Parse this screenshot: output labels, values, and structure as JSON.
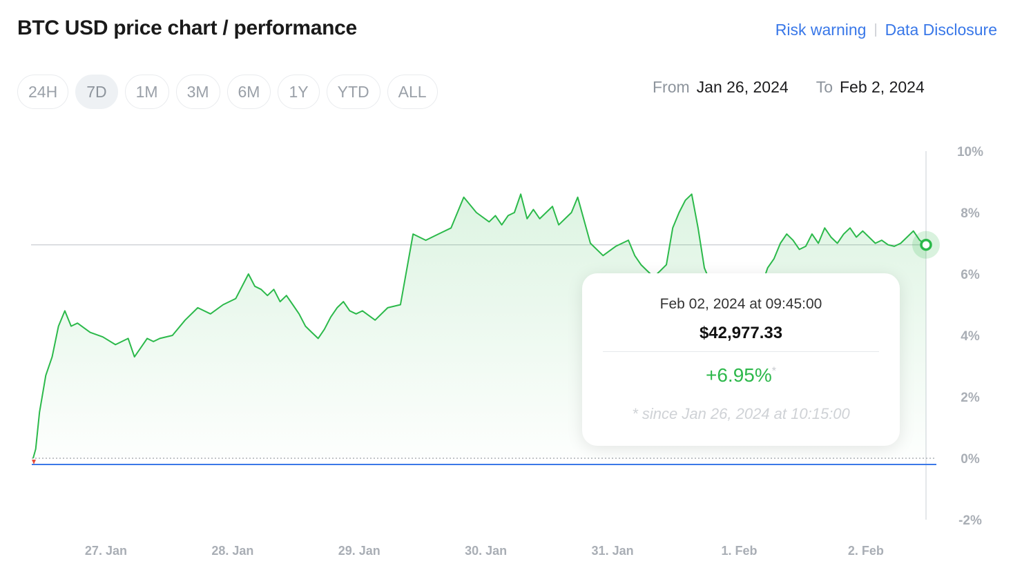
{
  "header": {
    "title": "BTC USD price chart / performance",
    "risk_link": "Risk warning",
    "separator": "|",
    "disclosure_link": "Data Disclosure"
  },
  "periods": [
    "24H",
    "7D",
    "1M",
    "3M",
    "6M",
    "1Y",
    "YTD",
    "ALL"
  ],
  "active_period": "7D",
  "range": {
    "from_label": "From",
    "from_value": "Jan 26, 2024",
    "to_label": "To",
    "to_value": "Feb 2, 2024"
  },
  "tooltip": {
    "date": "Feb 02, 2024 at 09:45:00",
    "price": "$42,977.33",
    "change": "+6.95%",
    "asterisk": "*",
    "since": "* since Jan 26, 2024 at 10:15:00"
  },
  "colors": {
    "line": "#2bb94a",
    "baseline": "#3b78e7",
    "link": "#3877e8",
    "axis_text": "#a9aeb5"
  },
  "chart_data": {
    "type": "area",
    "y_unit": "%",
    "ylim": [
      -2,
      10
    ],
    "y_ticks": [
      -2,
      0,
      2,
      4,
      6,
      8,
      10
    ],
    "y_tick_labels": [
      "-2%",
      "0%",
      "2%",
      "4%",
      "6%",
      "8%",
      "10%"
    ],
    "x_tick_labels": [
      "27. Jan",
      "28. Jan",
      "29. Jan",
      "30. Jan",
      "31. Jan",
      "1. Feb",
      "2. Feb"
    ],
    "x_ticks_days": [
      0.575,
      1.575,
      2.575,
      3.575,
      4.575,
      5.575,
      6.575
    ],
    "grid": false,
    "reference_line_value": 6.95,
    "series": [
      {
        "x_days": [
          0,
          0.02,
          0.05,
          0.1,
          0.15,
          0.2,
          0.25,
          0.3,
          0.35,
          0.45,
          0.55,
          0.65,
          0.75,
          0.8,
          0.85,
          0.9,
          0.95,
          1.0,
          1.1,
          1.2,
          1.3,
          1.4,
          1.5,
          1.6,
          1.7,
          1.75,
          1.8,
          1.85,
          1.9,
          1.95,
          2.0,
          2.05,
          2.1,
          2.15,
          2.2,
          2.25,
          2.3,
          2.35,
          2.4,
          2.45,
          2.5,
          2.55,
          2.6,
          2.7,
          2.8,
          2.9,
          3.0,
          3.1,
          3.15,
          3.2,
          3.3,
          3.4,
          3.5,
          3.6,
          3.65,
          3.7,
          3.75,
          3.8,
          3.85,
          3.9,
          3.95,
          4.0,
          4.05,
          4.1,
          4.15,
          4.2,
          4.25,
          4.3,
          4.4,
          4.5,
          4.6,
          4.7,
          4.75,
          4.8,
          4.85,
          4.9,
          4.95,
          5.0,
          5.05,
          5.1,
          5.15,
          5.2,
          5.25,
          5.3,
          5.35,
          5.4,
          5.45,
          5.5,
          5.55,
          5.6,
          5.65,
          5.7,
          5.75,
          5.8,
          5.85,
          5.9,
          5.95,
          6.0,
          6.05,
          6.1,
          6.15,
          6.2,
          6.25,
          6.3,
          6.35,
          6.4,
          6.45,
          6.5,
          6.55,
          6.6,
          6.65,
          6.7,
          6.75,
          6.8,
          6.85,
          6.9,
          6.95,
          7.0,
          7.05
        ],
        "values": [
          0.0,
          0.3,
          1.5,
          2.7,
          3.3,
          4.3,
          4.8,
          4.3,
          4.4,
          4.1,
          3.95,
          3.7,
          3.9,
          3.3,
          3.6,
          3.9,
          3.8,
          3.9,
          4.0,
          4.5,
          4.9,
          4.7,
          5.0,
          5.2,
          6.0,
          5.6,
          5.5,
          5.3,
          5.5,
          5.1,
          5.3,
          5.0,
          4.7,
          4.3,
          4.1,
          3.9,
          4.2,
          4.6,
          4.9,
          5.1,
          4.8,
          4.7,
          4.8,
          4.5,
          4.9,
          5.0,
          7.3,
          7.1,
          7.2,
          7.3,
          7.5,
          8.5,
          8.0,
          7.7,
          7.9,
          7.6,
          7.9,
          8.0,
          8.6,
          7.8,
          8.1,
          7.8,
          8.0,
          8.2,
          7.6,
          7.8,
          8.0,
          8.5,
          7.0,
          6.6,
          6.9,
          7.1,
          6.6,
          6.3,
          6.1,
          5.9,
          6.1,
          6.3,
          7.5,
          8.0,
          8.4,
          8.6,
          7.5,
          6.2,
          5.7,
          5.9,
          5.3,
          5.2,
          5.5,
          5.7,
          5.4,
          5.6,
          5.6,
          6.2,
          6.5,
          7.0,
          7.3,
          7.1,
          6.8,
          6.9,
          7.3,
          7.0,
          7.5,
          7.2,
          7.0,
          7.3,
          7.5,
          7.2,
          7.4,
          7.2,
          7.0,
          7.1,
          6.95,
          6.9,
          7.0,
          7.2,
          7.4,
          7.1,
          6.95
        ],
        "current": {
          "x_days": 7.05,
          "value": 6.95
        }
      }
    ]
  }
}
